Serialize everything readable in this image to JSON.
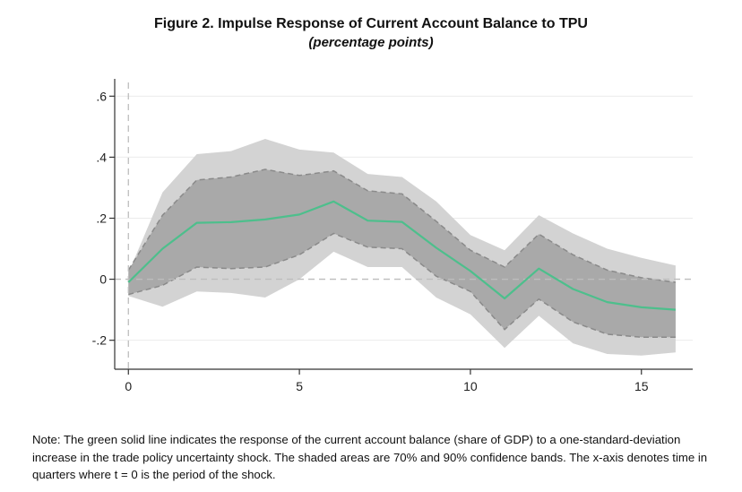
{
  "title": "Figure 2. Impulse Response of Current Account Balance to TPU",
  "subtitle": "(percentage points)",
  "note": "Note: The green solid line indicates the response of the current account balance (share of GDP) to a one-standard-deviation increase in the trade policy uncertainty shock. The shaded areas are 70% and 90% confidence bands. The x-axis denotes time in quarters where t = 0 is the period of the shock.",
  "colors": {
    "line": "#4dbf8c",
    "band90": "#d3d3d3",
    "band70": "#a9a9a9",
    "band70_edge": "#8a8a8a",
    "zero_line": "#bdbdbd",
    "axis": "#333333"
  },
  "chart_data": {
    "type": "line",
    "title": "Figure 2. Impulse Response of Current Account Balance to TPU",
    "subtitle": "(percentage points)",
    "x": [
      0,
      1,
      2,
      3,
      4,
      5,
      6,
      7,
      8,
      9,
      10,
      11,
      12,
      13,
      14,
      15,
      16
    ],
    "series": [
      {
        "role": "line",
        "values": [
          -0.01,
          0.1,
          0.185,
          0.187,
          0.196,
          0.212,
          0.255,
          0.192,
          0.188,
          0.103,
          0.027,
          -0.063,
          0.035,
          -0.032,
          -0.075,
          -0.092,
          -0.1
        ]
      },
      {
        "role": "band70_upper",
        "values": [
          0.03,
          0.21,
          0.325,
          0.335,
          0.36,
          0.34,
          0.355,
          0.29,
          0.28,
          0.19,
          0.095,
          0.04,
          0.148,
          0.08,
          0.03,
          0.005,
          -0.01
        ]
      },
      {
        "role": "band70_lower",
        "values": [
          -0.05,
          -0.02,
          0.04,
          0.035,
          0.04,
          0.08,
          0.15,
          0.105,
          0.1,
          0.01,
          -0.04,
          -0.165,
          -0.065,
          -0.14,
          -0.18,
          -0.19,
          -0.19
        ]
      },
      {
        "role": "band90_upper",
        "values": [
          0.02,
          0.285,
          0.41,
          0.42,
          0.46,
          0.425,
          0.415,
          0.345,
          0.335,
          0.255,
          0.145,
          0.095,
          0.21,
          0.15,
          0.1,
          0.07,
          0.045
        ]
      },
      {
        "role": "band90_lower",
        "values": [
          -0.055,
          -0.09,
          -0.04,
          -0.045,
          -0.06,
          0.0,
          0.09,
          0.04,
          0.04,
          -0.06,
          -0.115,
          -0.225,
          -0.12,
          -0.21,
          -0.245,
          -0.25,
          -0.24
        ]
      }
    ],
    "xticks": [
      0,
      5,
      10,
      15
    ],
    "xtick_labels": [
      "0",
      "5",
      "10",
      "15"
    ],
    "yticks": [
      -0.2,
      0,
      0.2,
      0.4,
      0.6
    ],
    "ytick_labels": [
      "-.2",
      "0",
      ".2",
      ".4",
      ".6"
    ],
    "xlim": [
      -0.4,
      16.5
    ],
    "ylim": [
      -0.295,
      0.645
    ],
    "reference_lines": {
      "y": 0,
      "x": 0
    },
    "grid": true
  }
}
